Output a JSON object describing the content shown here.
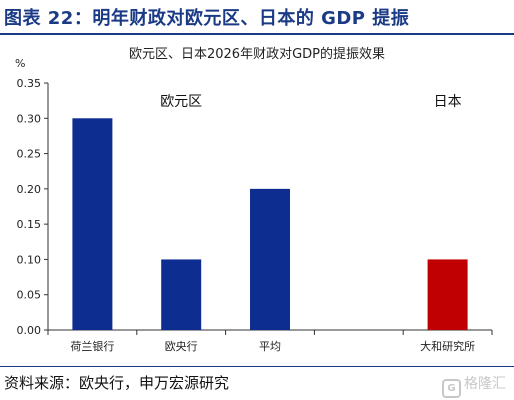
{
  "figure_title": "图表 22：明年财政对欧元区、日本的 GDP 提振",
  "source": "资料来源：欧央行，申万宏源研究",
  "watermark": {
    "text": "格隆汇",
    "icon": "G"
  },
  "colors": {
    "title": "#1a3a86",
    "eurozone_bar": "#0e2d91",
    "japan_bar": "#c00000",
    "axis": "#333333"
  },
  "chart_data": {
    "type": "bar",
    "title": "欧元区、日本2026年财政对GDP的提振效果",
    "ylabel": "%",
    "ylim": [
      0,
      0.35
    ],
    "yticks": [
      "0.00",
      "0.05",
      "0.10",
      "0.15",
      "0.20",
      "0.25",
      "0.30",
      "0.35"
    ],
    "grid": false,
    "categories": [
      "荷兰银行",
      "欧央行",
      "平均",
      "",
      "大和研究所"
    ],
    "values": [
      0.3,
      0.1,
      0.2,
      null,
      0.1
    ],
    "groups": [
      {
        "label": "欧元区",
        "categories": [
          0,
          1,
          2
        ],
        "color": "#0e2d91"
      },
      {
        "label": "日本",
        "categories": [
          4
        ],
        "color": "#c00000"
      }
    ]
  }
}
